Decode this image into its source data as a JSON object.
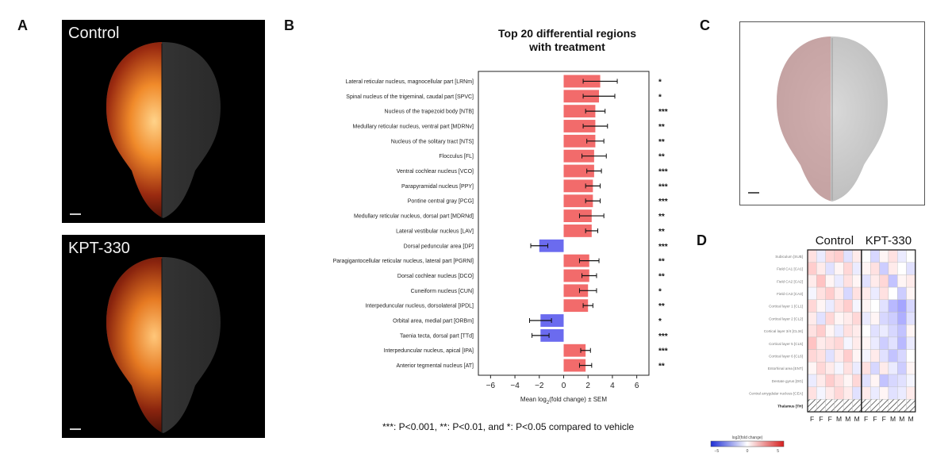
{
  "panels": {
    "a": "A",
    "b": "B",
    "c": "C",
    "d": "D"
  },
  "panel_a": {
    "top_label": "Control",
    "bottom_label": "KPT-330"
  },
  "footnote": "***: P<0.001, **: P<0.01, and *: P<0.05 compared to vehicle",
  "chart_data": [
    {
      "type": "bar",
      "orientation": "horizontal",
      "title_lines": [
        "Top 20 differential regions",
        "with treatment"
      ],
      "xlabel_parts": [
        "Mean log",
        "2",
        "(fold change) ± SEM"
      ],
      "xlim": [
        -7,
        7
      ],
      "xticks": [
        -6,
        -4,
        -2,
        0,
        2,
        4,
        6
      ],
      "xtick_labels": [
        "−6",
        "−4",
        "−2",
        "0",
        "2",
        "4",
        "6"
      ],
      "positive_color": "#f26b6b",
      "negative_color": "#6b6bef",
      "categories": [
        "Lateral reticular nucleus, magnocellular part [LRNm]",
        "Spinal nucleus of the trigeminal, caudal part [SPVC]",
        "Nucleus of the trapezoid body [NTB]",
        "Medullary reticular nucleus, ventral part [MDRNv]",
        "Nucleus of the solitary tract [NTS]",
        "Flocculus [FL]",
        "Ventral cochlear nucleus [VCO]",
        "Parapyramidal nucleus [PPY]",
        "Pontine central gray [PCG]",
        "Medullary reticular nucleus, dorsal part [MDRNd]",
        "Lateral vestibular nucleus [LAV]",
        "Dorsal peduncular area [DP]",
        "Paragigantocellular reticular nucleus, lateral part [PGRNl]",
        "Dorsal cochlear nucleus [DCO]",
        "Cuneiform nucleus [CUN]",
        "Interpeduncular nucleus, dorsolateral [IPDL]",
        "Orbital area, medial part [ORBm]",
        "Taenia tecta, dorsal part [TTd]",
        "Interpeduncular nucleus, apical [IPA]",
        "Anterior tegmental nucleus [AT]"
      ],
      "values": [
        3.0,
        2.9,
        2.6,
        2.6,
        2.6,
        2.5,
        2.5,
        2.4,
        2.4,
        2.3,
        2.3,
        -2.0,
        2.1,
        2.1,
        2.0,
        2.0,
        -1.9,
        -1.9,
        1.8,
        1.8
      ],
      "sem": [
        1.4,
        1.3,
        0.8,
        1.0,
        0.7,
        1.0,
        0.6,
        0.6,
        0.6,
        1.0,
        0.5,
        0.7,
        0.8,
        0.6,
        0.7,
        0.4,
        0.9,
        0.7,
        0.4,
        0.5
      ],
      "significance": [
        "*",
        "*",
        "***",
        "**",
        "**",
        "**",
        "***",
        "***",
        "***",
        "**",
        "**",
        "***",
        "**",
        "**",
        "*",
        "**",
        "*",
        "***",
        "***",
        "**"
      ]
    },
    {
      "type": "heatmap",
      "group_labels": [
        "Control",
        "KPT-330"
      ],
      "columns": [
        "F",
        "F",
        "F",
        "M",
        "M",
        "M",
        "F",
        "F",
        "F",
        "M",
        "M",
        "M"
      ],
      "rows": [
        "Subiculum [SUB]",
        "Field CA1 [CA1]",
        "Field CA2 [CA2]",
        "Field CA3 [CA3]",
        "Cortical layer 1 [CL1]",
        "Cortical layer 2 [CL2]",
        "Cortical layer 3/4 [CL34]",
        "Cortical layer 5 [CL5]",
        "Cortical layer 6 [CL6]",
        "Entorhinal area [ENT]",
        "Dentate gyrus [DG]",
        "Central amygdalar nucleus [CEA]",
        "Thalamus [TH]"
      ],
      "values": [
        [
          0.3,
          -0.2,
          0.4,
          0.5,
          -0.3,
          0.2,
          0.0,
          -0.4,
          0.1,
          0.3,
          -0.2,
          0.0
        ],
        [
          0.5,
          0.2,
          -0.3,
          0.1,
          0.4,
          -0.2,
          0.1,
          0.3,
          -0.5,
          0.2,
          0.0,
          -0.3
        ],
        [
          0.2,
          0.6,
          0.1,
          -0.2,
          0.3,
          0.1,
          -0.3,
          0.2,
          0.4,
          -0.6,
          0.1,
          0.2
        ],
        [
          -0.1,
          0.3,
          0.5,
          0.2,
          -0.4,
          0.3,
          0.2,
          -0.2,
          0.3,
          0.0,
          -0.5,
          0.1
        ],
        [
          0.4,
          0.1,
          -0.2,
          0.3,
          0.5,
          -0.1,
          0.1,
          0.0,
          -0.3,
          -0.7,
          -0.9,
          -0.4
        ],
        [
          0.2,
          -0.3,
          0.4,
          0.1,
          0.2,
          0.4,
          -0.2,
          0.1,
          -0.4,
          -0.5,
          -0.8,
          -0.3
        ],
        [
          0.3,
          0.5,
          0.1,
          -0.2,
          0.3,
          0.2,
          0.0,
          -0.3,
          -0.2,
          -0.4,
          -0.6,
          0.1
        ],
        [
          0.6,
          0.2,
          0.3,
          0.4,
          -0.1,
          0.2,
          0.1,
          -0.2,
          -0.5,
          -0.3,
          -0.7,
          -0.2
        ],
        [
          0.4,
          0.3,
          -0.3,
          0.2,
          0.5,
          0.1,
          -0.1,
          0.2,
          -0.3,
          -0.6,
          -0.4,
          0.0
        ],
        [
          0.1,
          0.4,
          0.2,
          -0.1,
          0.3,
          -0.2,
          0.3,
          -0.4,
          0.2,
          -0.2,
          -0.5,
          0.1
        ],
        [
          -0.2,
          0.2,
          0.5,
          0.3,
          0.1,
          0.4,
          -0.3,
          0.1,
          -0.6,
          -0.4,
          -0.3,
          -0.1
        ],
        [
          0.3,
          -0.1,
          0.2,
          0.4,
          0.2,
          -0.3,
          0.2,
          -0.2,
          0.1,
          -0.3,
          -0.2,
          0.2
        ],
        [
          null,
          null,
          null,
          null,
          null,
          null,
          null,
          null,
          null,
          null,
          null,
          null
        ]
      ],
      "colorbar": {
        "label": "log2(fold change)",
        "ticks": [
          "−5",
          "0",
          "5"
        ],
        "min": -5,
        "max": 5
      }
    }
  ]
}
